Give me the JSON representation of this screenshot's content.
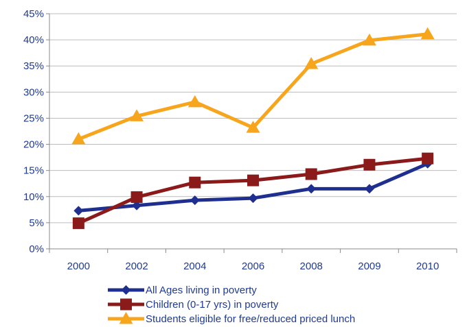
{
  "chart_data": {
    "type": "line",
    "title": "",
    "xlabel": "",
    "ylabel": "",
    "categories": [
      "2000",
      "2002",
      "2004",
      "2006",
      "2008",
      "2009",
      "2010"
    ],
    "ylim": [
      0,
      45
    ],
    "yticks": [
      0,
      5,
      10,
      15,
      20,
      25,
      30,
      35,
      40,
      45
    ],
    "ytick_labels": [
      "0%",
      "5%",
      "10%",
      "15%",
      "20%",
      "25%",
      "30%",
      "35%",
      "40%",
      "45%"
    ],
    "grid": "horizontal",
    "legend_position": "bottom",
    "series": [
      {
        "name": "All Ages living in poverty",
        "color": "#1f2f8f",
        "marker": "diamond",
        "values": [
          7.3,
          8.3,
          9.3,
          9.7,
          11.5,
          11.5,
          16.3
        ]
      },
      {
        "name": "Children (0-17 yrs) in poverty",
        "color": "#8b1a1a",
        "marker": "square",
        "values": [
          4.9,
          9.9,
          12.7,
          13.1,
          14.3,
          16.1,
          17.3
        ]
      },
      {
        "name": "Students eligible for free/reduced priced lunch",
        "color": "#f7a51c",
        "marker": "triangle",
        "values": [
          21.0,
          25.4,
          28.1,
          23.2,
          35.4,
          39.9,
          41.1
        ]
      }
    ]
  }
}
